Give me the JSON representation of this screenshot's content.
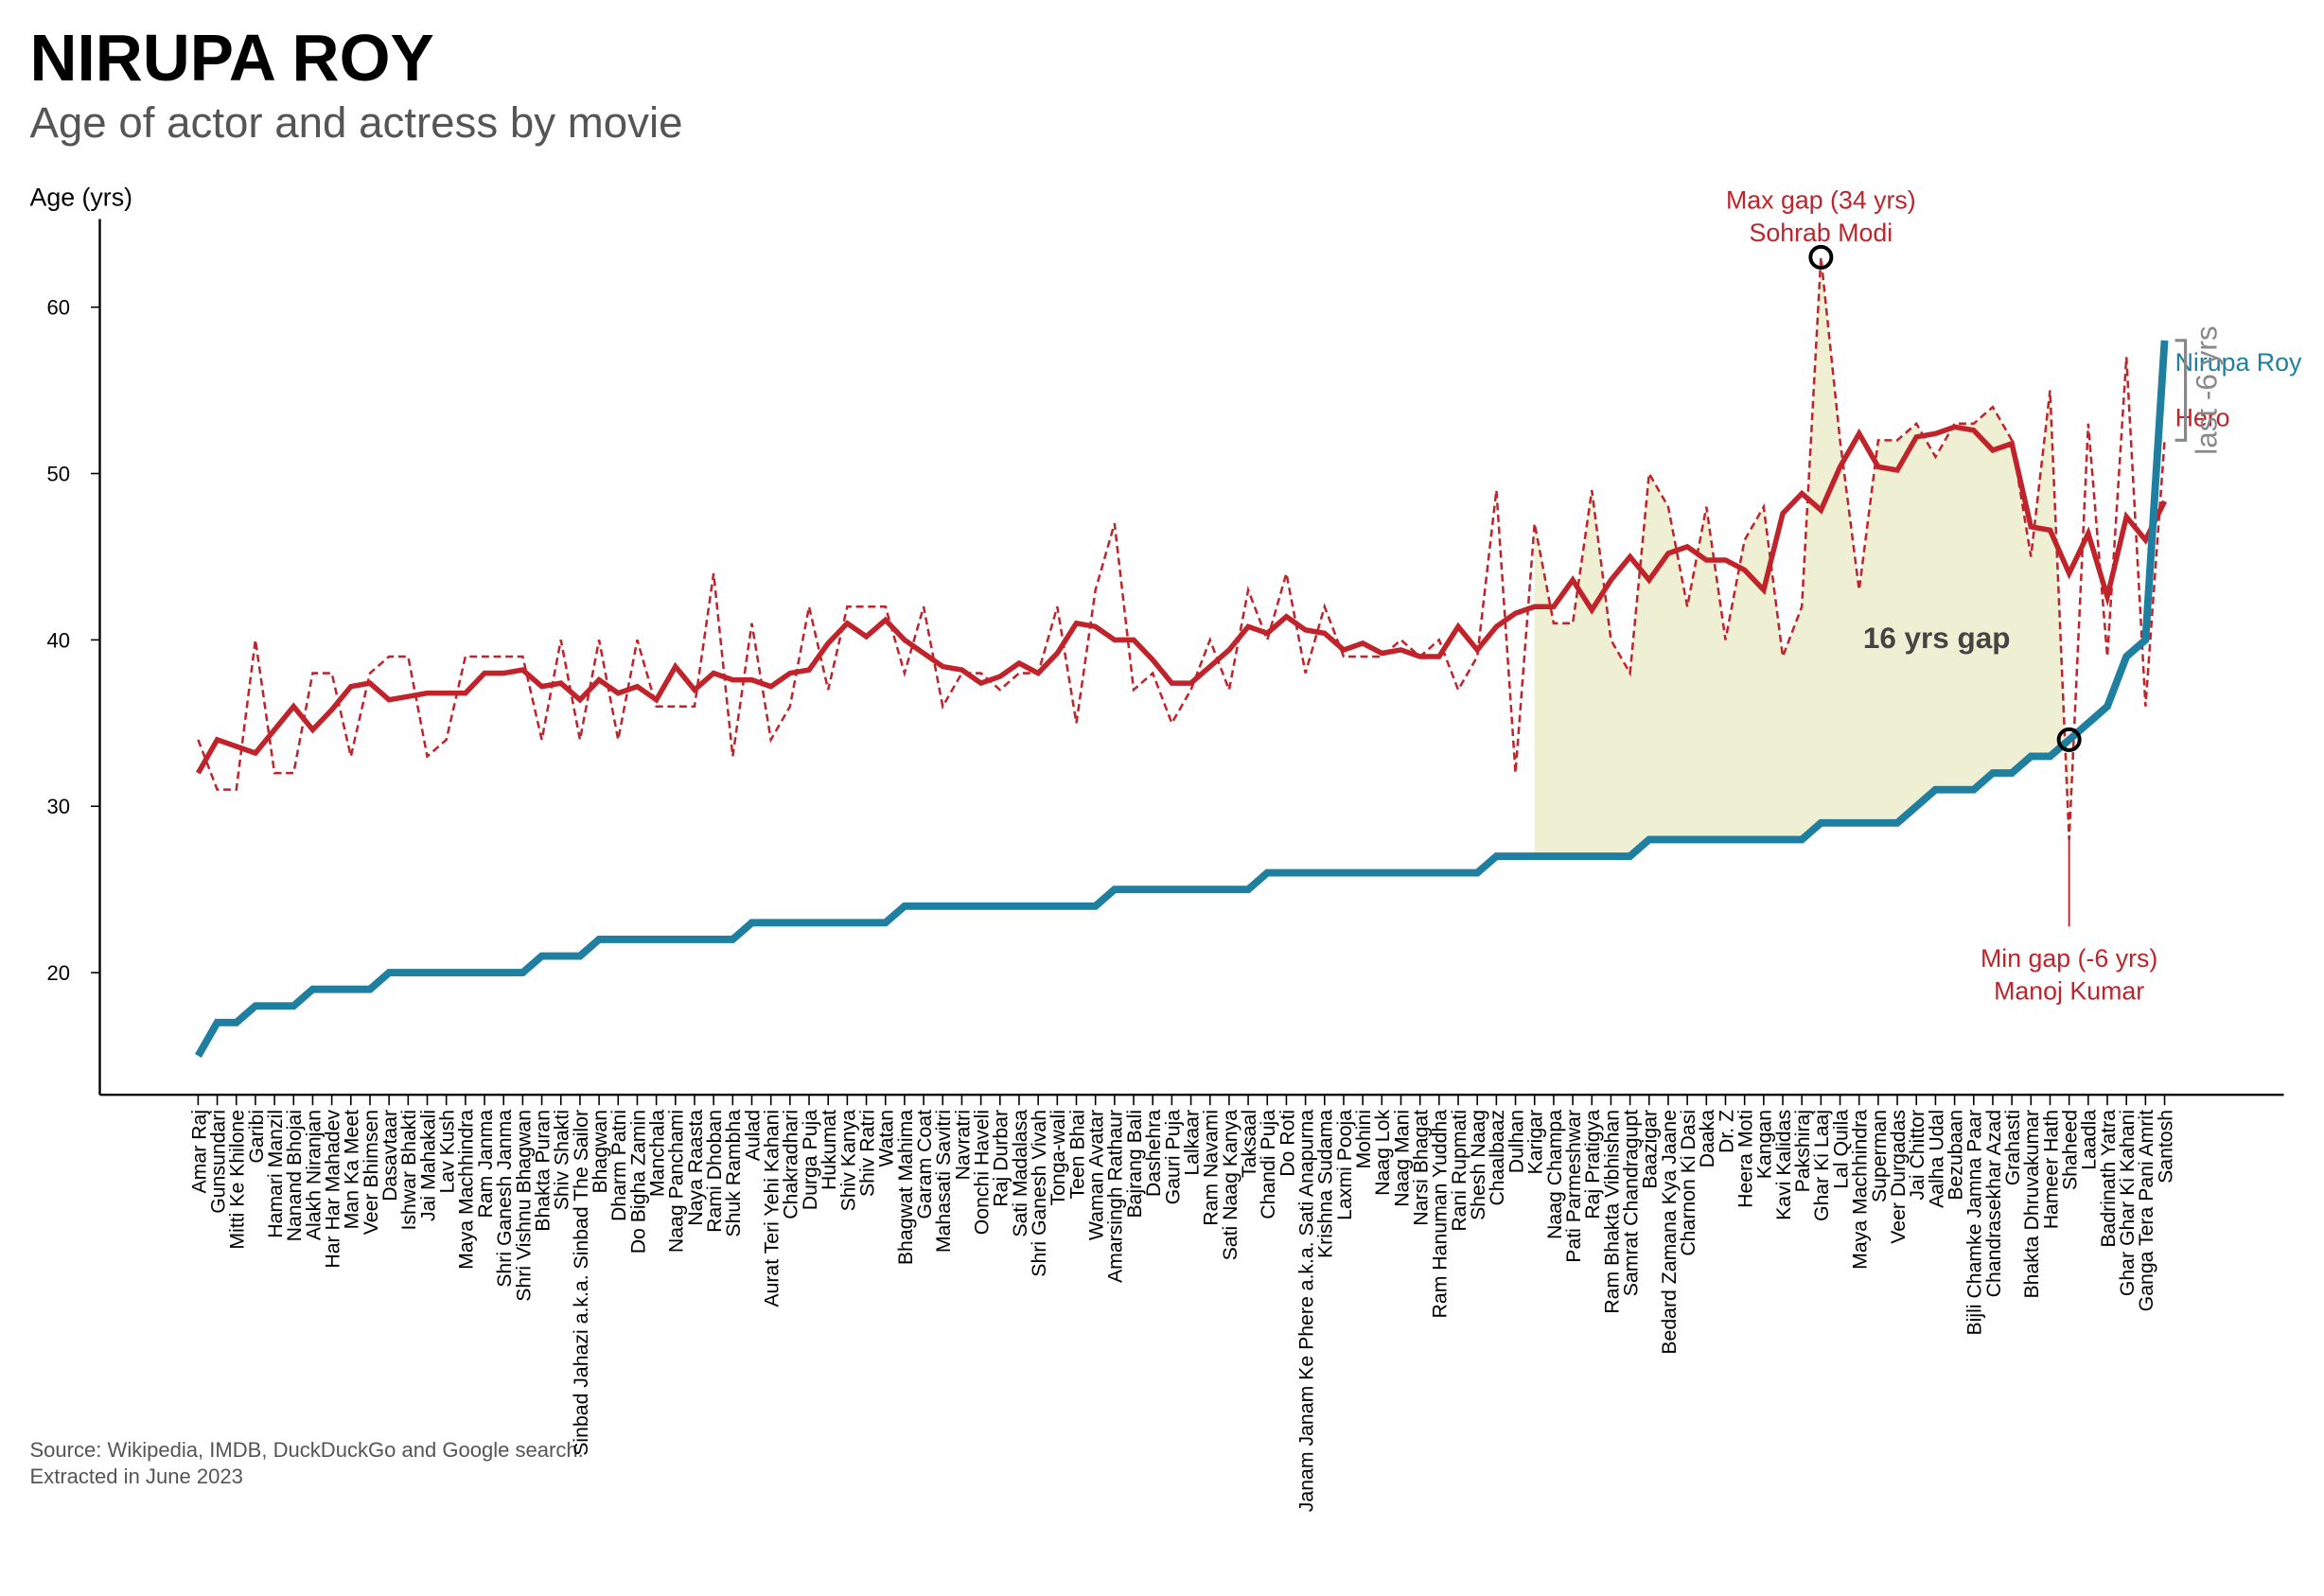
{
  "chart_data": {
    "type": "line",
    "title": "NIRUPA ROY",
    "subtitle": "Age of actor and actress by movie",
    "y_label": "Age (yrs)",
    "categories": [
      "Amar Raj",
      "Gunsundari",
      "Mitti Ke Khilone",
      "Garibi",
      "Hamari Manzil",
      "Nanand Bhojai",
      "Alakh Niranjan",
      "Har Har Mahadev",
      "Man Ka Meet",
      "Veer Bhimsen",
      "Dasavtaar",
      "Ishwar Bhakti",
      "Jai Mahakali",
      "Lav Kush",
      "Maya Machhindra",
      "Ram Janma",
      "Shri Ganesh Janma",
      "Shri Vishnu Bhagwan",
      "Bhakta Puran",
      "Shiv Shakti",
      "Sinbad Jahazi a.k.a. Sinbad The Sailor",
      "Bhagwan",
      "Dharm Patni",
      "Do Bigha Zamin",
      "Manchala",
      "Naag Panchami",
      "Naya Raasta",
      "Rami Dhoban",
      "Shuk Rambha",
      "Aulad",
      "Aurat Teri Yehi Kahani",
      "Chakradhari",
      "Durga Puja",
      "Hukumat",
      "Shiv Kanya",
      "Shiv Ratri",
      "Watan",
      "Bhagwat Mahima",
      "Garam Coat",
      "Mahasati Savitri",
      "Navratri",
      "Oonchi Haveli",
      "Raj Durbar",
      "Sati Madalasa",
      "Shri Ganesh Vivah",
      "Tonga-wali",
      "Teen Bhai",
      "Waman Avatar",
      "Amarsingh Rathaur",
      "Bajrang Bali",
      "Dashehra",
      "Gauri Puja",
      "Lalkaar",
      "Ram Navami",
      "Sati Naag Kanya",
      "Taksaal",
      "Chandi Puja",
      "Do Roti",
      "Janam Janam Ke Phere a.k.a. Sati Anapurna",
      "Krishna Sudama",
      "Laxmi Pooja",
      "Mohini",
      "Naag Lok",
      "Naag Mani",
      "Narsi Bhagat",
      "Ram Hanuman Yuddha",
      "Rani Rupmati",
      "Shesh Naag",
      "Chaalbaaz",
      "Dulhan",
      "Karigar",
      "Naag Champa",
      "Pati Parmeshwar",
      "Raj Pratigya",
      "Ram Bhakta Vibhishan",
      "Samrat Chandragupt",
      "Baazigar",
      "Bedard Zamana Kya Jaane",
      "Charnon Ki Dasi",
      "Daaka",
      "Dr. Z",
      "Heera Moti",
      "Kangan",
      "Kavi Kalidas",
      "Pakshiraj",
      "Ghar Ki Laaj",
      "Lal Quila",
      "Maya Machhindra",
      "Superman",
      "Veer Durgadas",
      "Jai Chittor",
      "Aalha Udal",
      "Bezubaan",
      "Bijli Chamke Jamna Paar",
      "Chandrasekhar Azad",
      "Grahasti",
      "Bhakta Dhruvakumar",
      "Hameer Hath",
      "Shaheed",
      "Laadla",
      "Badrinath Yatra",
      "Ghar Ghar Ki Kahani",
      "Ganga Tera Pani Amrit",
      "Santosh"
    ],
    "series": [
      {
        "name": "Nirupa Roy",
        "color": "#1f7fa0",
        "values": [
          15,
          17,
          17,
          18,
          18,
          18,
          19,
          19,
          19,
          19,
          20,
          20,
          20,
          20,
          20,
          20,
          20,
          20,
          21,
          21,
          21,
          22,
          22,
          22,
          22,
          22,
          22,
          22,
          22,
          23,
          23,
          23,
          23,
          23,
          23,
          23,
          23,
          24,
          24,
          24,
          24,
          24,
          24,
          24,
          24,
          24,
          24,
          24,
          25,
          25,
          25,
          25,
          25,
          25,
          25,
          25,
          26,
          26,
          26,
          26,
          26,
          26,
          26,
          26,
          26,
          26,
          26,
          26,
          27,
          27,
          27,
          27,
          27,
          27,
          27,
          27,
          28,
          28,
          28,
          28,
          28,
          28,
          28,
          28,
          28,
          29,
          29,
          29,
          29,
          29,
          30,
          31,
          31,
          31,
          32,
          32,
          33,
          33,
          34,
          35,
          36,
          39,
          40,
          58
        ]
      },
      {
        "name": "Hero",
        "color": "#c0232a",
        "values": [
          34,
          31,
          31,
          40,
          32,
          32,
          38,
          38,
          33,
          38,
          39,
          39,
          33,
          34,
          39,
          39,
          39,
          39,
          34,
          40,
          34,
          40,
          34,
          40,
          36,
          36,
          36,
          44,
          33,
          41,
          34,
          36,
          42,
          37,
          42,
          42,
          42,
          38,
          42,
          36,
          38,
          38,
          37,
          38,
          38,
          42,
          35,
          43,
          47,
          37,
          38,
          35,
          37,
          40,
          37,
          43,
          40,
          44,
          38,
          42,
          39,
          39,
          39,
          40,
          39,
          40,
          37,
          39,
          49,
          32,
          47,
          41,
          41,
          49,
          40,
          38,
          50,
          48,
          42,
          48,
          40,
          46,
          48,
          39,
          42,
          63,
          52,
          43,
          52,
          52,
          53,
          51,
          53,
          53,
          54,
          52,
          45,
          55,
          28,
          53,
          39,
          57,
          36,
          52
        ]
      }
    ],
    "ylim": [
      12.66,
      65.3
    ],
    "yticks": [
      20,
      30,
      40,
      50,
      60
    ],
    "max_gap_label": "Max gap (34 yrs)",
    "max_gap_name": "Sohrab Modi",
    "min_gap_label": "Min gap (-6 yrs)",
    "min_gap_name": "Manoj Kumar",
    "gap_label": "16 yrs gap",
    "last_gap_label": "last -6 yrs",
    "source": [
      "Source: Wikipedia, IMDB, DuckDuckGo and Google search.",
      "Extracted in June 2023"
    ]
  }
}
